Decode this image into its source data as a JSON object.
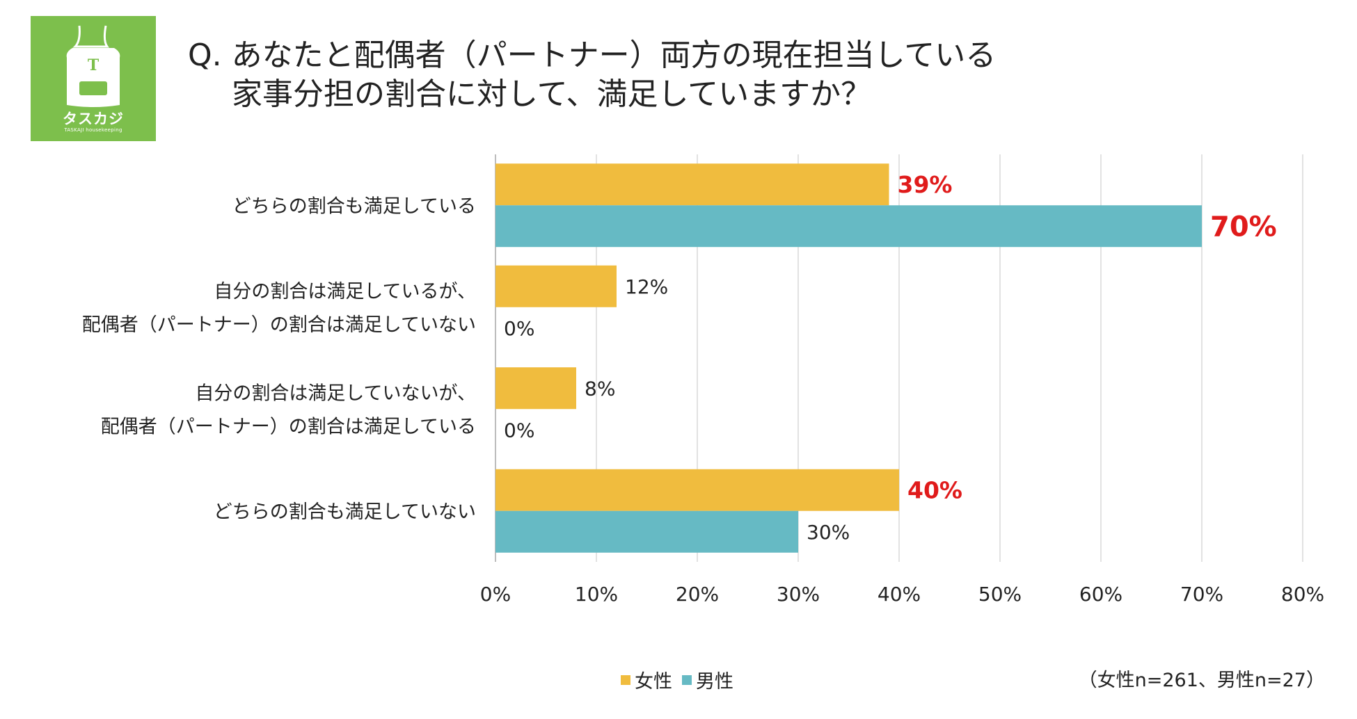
{
  "logo": {
    "mark": "T",
    "name": "タスカジ",
    "sub": "TASKAJI housekeeping",
    "icon": "apron-icon",
    "bg": "#7dbf4c"
  },
  "title": {
    "line1": "Q. あなたと配偶者（パートナー）両方の現在担当している",
    "line2": "家事分担の割合に対して、満足していますか？"
  },
  "note": "（女性n=261、男性n=27）",
  "chart_data": {
    "type": "bar",
    "orientation": "horizontal",
    "categories": [
      [
        "どちらの割合も満足している"
      ],
      [
        "自分の割合は満足しているが、",
        "配偶者（パートナー）の割合は満足していない"
      ],
      [
        "自分の割合は満足していないが、",
        "配偶者（パートナー）の割合は満足している"
      ],
      [
        "どちらの割合も満足していない"
      ]
    ],
    "series": [
      {
        "name": "女性",
        "color": "#f0bc3e",
        "values": [
          39,
          12,
          8,
          40
        ],
        "value_labels": [
          "39%",
          "12%",
          "8%",
          "40%"
        ]
      },
      {
        "name": "男性",
        "color": "#66bac4",
        "values": [
          70,
          0,
          0,
          30
        ],
        "value_labels": [
          "70%",
          "0%",
          "0%",
          "30%"
        ]
      }
    ],
    "highlighted_labels": {
      "color": "#e01b1b",
      "points": [
        [
          0,
          0
        ],
        [
          1,
          0
        ],
        [
          0,
          3
        ]
      ]
    },
    "xlim": [
      0,
      80
    ],
    "x_ticks": [
      "0%",
      "10%",
      "20%",
      "30%",
      "40%",
      "50%",
      "60%",
      "70%",
      "80%"
    ],
    "grid": true,
    "legend": "bottom"
  }
}
